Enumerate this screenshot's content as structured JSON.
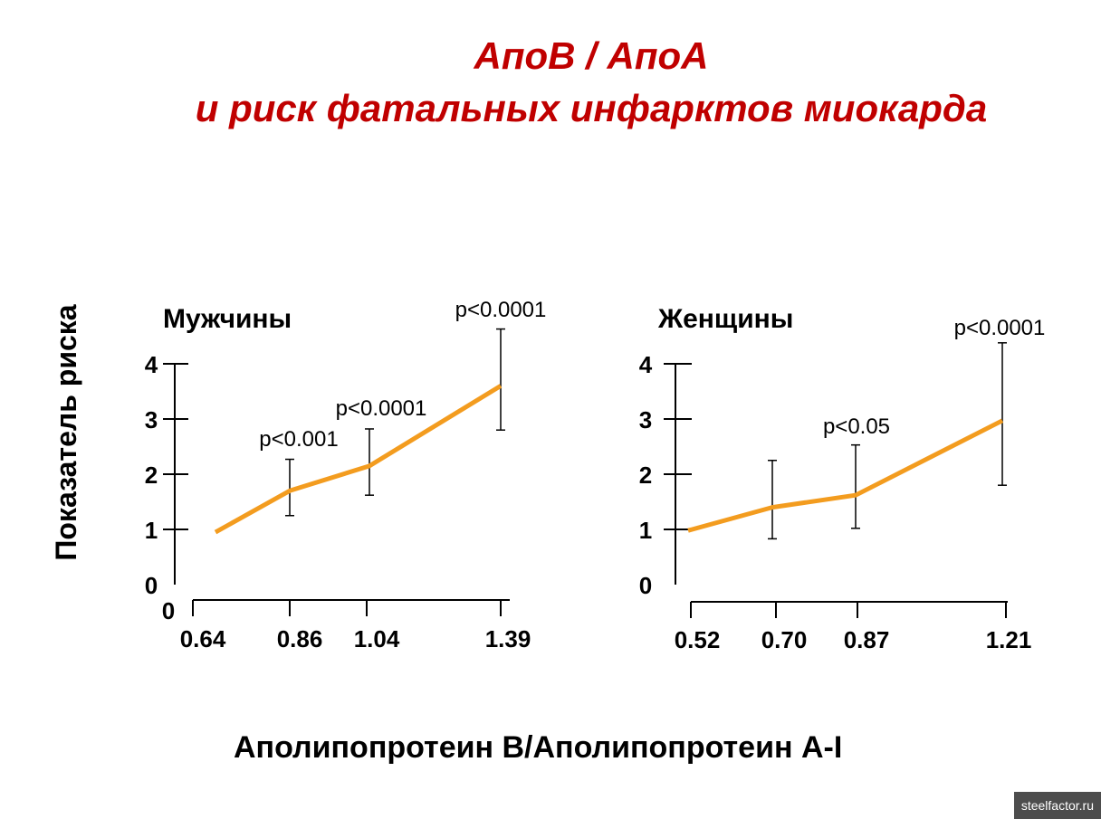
{
  "page": {
    "title_line1": "АпоВ / АпоА",
    "title_line2": "и риск фатальных инфарктов миокарда",
    "watermark": "steelfactor.ru"
  },
  "colors": {
    "title": "#c00000",
    "series_line": "#f39c1f",
    "axis": "#000000",
    "watermark_bg": "#4d4d4d"
  },
  "chart_data": [
    {
      "type": "line",
      "title": "Мужчины",
      "ylabel": "Показатель риска",
      "xlabel": "Аполипопротеин B/Аполипопротеин A-I",
      "x_tick_labels": [
        "0.64",
        "0.86",
        "1.04",
        "1.39"
      ],
      "x_zero_label": "0",
      "y_ticks": [
        0,
        1,
        2,
        3,
        4
      ],
      "ylim": [
        0,
        4
      ],
      "grid": false,
      "points": [
        {
          "x": "0.64",
          "y": 0.95,
          "lower": null,
          "upper": null,
          "p": ""
        },
        {
          "x": "0.86",
          "y": 1.7,
          "lower": 1.25,
          "upper": 2.27,
          "p": "p<0.001"
        },
        {
          "x": "1.04",
          "y": 2.15,
          "lower": 1.62,
          "upper": 2.82,
          "p": "p<0.0001"
        },
        {
          "x": "1.39",
          "y": 3.6,
          "lower": 2.8,
          "upper": 4.63,
          "p": "p<0.0001"
        }
      ]
    },
    {
      "type": "line",
      "title": "Женщины",
      "xlabel": "Аполипопротеин B/Аполипопротеин A-I",
      "x_tick_labels": [
        "0.52",
        "0.70",
        "0.87",
        "1.21"
      ],
      "y_ticks": [
        0,
        1,
        2,
        3,
        4
      ],
      "ylim": [
        0,
        4
      ],
      "grid": false,
      "points": [
        {
          "x": "0.52",
          "y": 0.98,
          "lower": null,
          "upper": null,
          "p": ""
        },
        {
          "x": "0.70",
          "y": 1.4,
          "lower": 0.83,
          "upper": 2.25,
          "p": ""
        },
        {
          "x": "0.87",
          "y": 1.62,
          "lower": 1.02,
          "upper": 2.53,
          "p": "p<0.05"
        },
        {
          "x": "1.21",
          "y": 2.97,
          "lower": 1.8,
          "upper": 4.38,
          "p": "p<0.0001"
        }
      ]
    }
  ]
}
